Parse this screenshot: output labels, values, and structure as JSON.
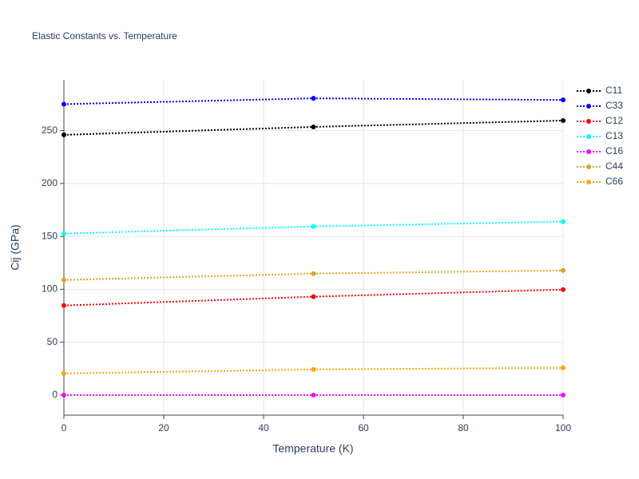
{
  "chart_data": {
    "type": "line",
    "title": "Elastic Constants vs. Temperature",
    "x_label": "Temperature (K)",
    "y_label": "Cij (GPa)",
    "x": [
      0,
      50,
      100
    ],
    "series": [
      {
        "name": "C11",
        "color": "#000000",
        "values": [
          246,
          253.5,
          259.5
        ]
      },
      {
        "name": "C33",
        "color": "#0000ff",
        "values": [
          275,
          280.5,
          279
        ]
      },
      {
        "name": "C12",
        "color": "#ff0000",
        "values": [
          84.6,
          93,
          99.7
        ]
      },
      {
        "name": "C13",
        "color": "#00ffff",
        "values": [
          152.6,
          159.4,
          164
        ]
      },
      {
        "name": "C16",
        "color": "#ff00ff",
        "values": [
          0,
          0,
          0
        ]
      },
      {
        "name": "C44",
        "color": "#daa520",
        "values": [
          108.8,
          114.8,
          117.8
        ]
      },
      {
        "name": "C66",
        "color": "#ffa500",
        "values": [
          20.4,
          24.2,
          25.7
        ]
      }
    ],
    "xlim": [
      0,
      100
    ],
    "xticks": [
      0,
      20,
      40,
      60,
      80,
      100
    ],
    "ylim": [
      -19,
      298
    ],
    "yticks": [
      0,
      50,
      100,
      150,
      200,
      250
    ],
    "grid": true,
    "legend": "right"
  }
}
